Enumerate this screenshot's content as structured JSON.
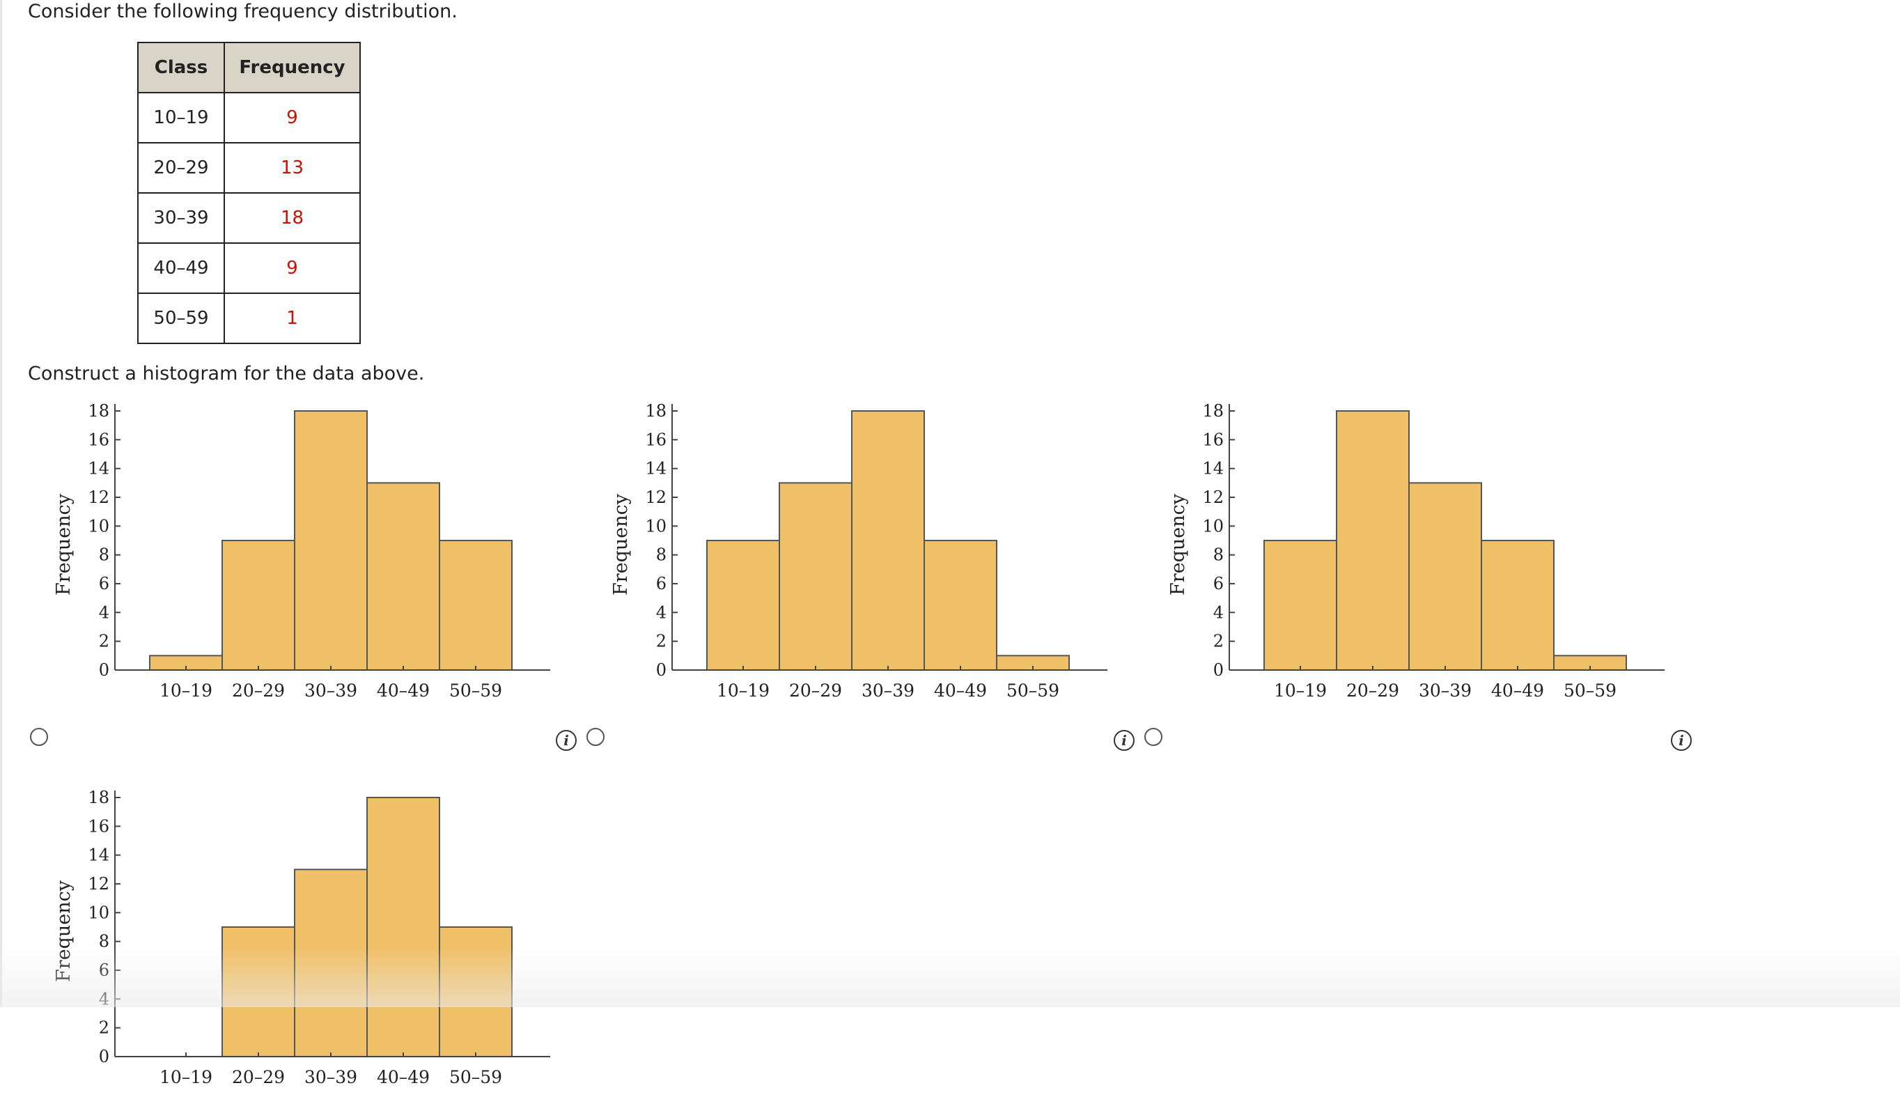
{
  "question": {
    "intro": "Consider the following frequency distribution.",
    "prompt": "Construct a histogram for the data above."
  },
  "table": {
    "headers": [
      "Class",
      "Frequency"
    ],
    "rows": [
      {
        "class": "10–19",
        "frequency": "9"
      },
      {
        "class": "20–29",
        "frequency": "13"
      },
      {
        "class": "30–39",
        "frequency": "18"
      },
      {
        "class": "40–49",
        "frequency": "9"
      },
      {
        "class": "50–59",
        "frequency": "1"
      }
    ]
  },
  "colors": {
    "bar_fill": "#f0c069",
    "bar_stroke": "#555555",
    "frequency_text": "#cc1100",
    "header_bg": "#d9d4c8"
  },
  "icons": {
    "radio": "radio-button-icon",
    "info": "info-icon",
    "info_glyph": "i"
  },
  "chart_data": [
    {
      "type": "bar",
      "option": 1,
      "categories": [
        "10–19",
        "20–29",
        "30–39",
        "40–49",
        "50–59"
      ],
      "values": [
        1,
        9,
        18,
        13,
        9
      ],
      "ylabel": "Frequency",
      "yticks": [
        "0",
        "2",
        "4",
        "6",
        "8",
        "10",
        "12",
        "14",
        "16",
        "18"
      ],
      "ylim": [
        0,
        18
      ]
    },
    {
      "type": "bar",
      "option": 2,
      "categories": [
        "10–19",
        "20–29",
        "30–39",
        "40–49",
        "50–59"
      ],
      "values": [
        9,
        13,
        18,
        9,
        1
      ],
      "ylabel": "Frequency",
      "yticks": [
        "0",
        "2",
        "4",
        "6",
        "8",
        "10",
        "12",
        "14",
        "16",
        "18"
      ],
      "ylim": [
        0,
        18
      ]
    },
    {
      "type": "bar",
      "option": 3,
      "categories": [
        "10–19",
        "20–29",
        "30–39",
        "40–49",
        "50–59"
      ],
      "values": [
        9,
        18,
        13,
        9,
        1
      ],
      "ylabel": "Frequency",
      "yticks": [
        "0",
        "2",
        "4",
        "6",
        "8",
        "10",
        "12",
        "14",
        "16",
        "18"
      ],
      "ylim": [
        0,
        18
      ]
    },
    {
      "type": "bar",
      "option": 4,
      "categories": [
        "10–19",
        "20–29",
        "30–39",
        "40–49",
        "50–59"
      ],
      "values": [
        0,
        9,
        13,
        18,
        9
      ],
      "ylabel": "Frequency",
      "yticks": [
        "0",
        "2",
        "4",
        "6",
        "8",
        "10",
        "12",
        "14",
        "16",
        "18"
      ],
      "ylim": [
        0,
        18
      ]
    }
  ]
}
